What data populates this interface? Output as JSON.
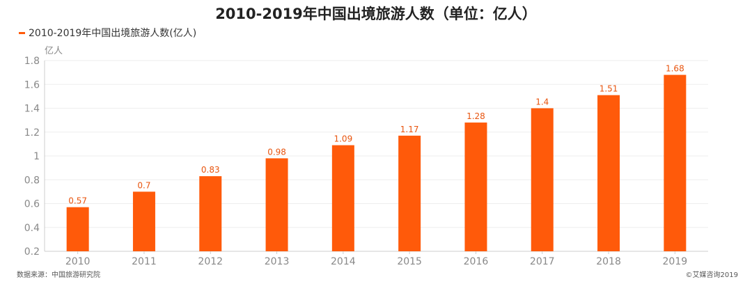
{
  "chart_data": {
    "type": "bar",
    "title": "2010-2019年中国出境旅游人数（单位：亿人）",
    "legend": [
      "2010-2019年中国出境旅游人数(亿人)"
    ],
    "legend_position": "top-left",
    "ylabel": "亿人",
    "xlabel": "",
    "categories": [
      "2010",
      "2011",
      "2012",
      "2013",
      "2014",
      "2015",
      "2016",
      "2017",
      "2018",
      "2019"
    ],
    "values": [
      0.57,
      0.7,
      0.83,
      0.98,
      1.09,
      1.17,
      1.28,
      1.4,
      1.51,
      1.68
    ],
    "ylim": [
      0.2,
      1.8
    ],
    "yticks": [
      "0.2",
      "0.4",
      "0.6",
      "0.8",
      "1",
      "1.2",
      "1.4",
      "1.6",
      "1.8"
    ],
    "grid": true,
    "bar_color": "#FF5A0A",
    "label_color": "#E8540E"
  },
  "footer": {
    "source": "数据来源：中国旅游研究院",
    "copyright": "©艾媒咨询2019"
  }
}
